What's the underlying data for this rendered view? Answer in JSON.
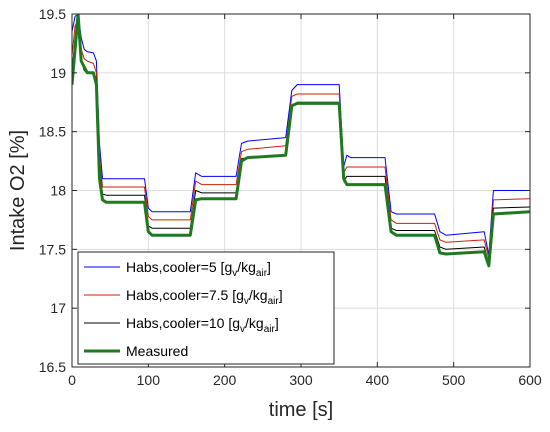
{
  "chart_data": {
    "type": "line",
    "xlabel": "time [s]",
    "ylabel": "Intake O2 [%]",
    "xlim": [
      0,
      600
    ],
    "ylim": [
      16.5,
      19.5
    ],
    "xticks": [
      0,
      100,
      200,
      300,
      400,
      500,
      600
    ],
    "yticks": [
      16.5,
      17,
      17.5,
      18,
      18.5,
      19,
      19.5
    ],
    "xtick_labels": [
      "0",
      "100",
      "200",
      "300",
      "400",
      "500",
      "600"
    ],
    "ytick_labels": [
      "16.5",
      "17",
      "17.5",
      "18",
      "18.5",
      "19",
      "19.5"
    ],
    "grid": true,
    "legend_position": "lower-left",
    "series": [
      {
        "name": "Habs,cooler=5 [gv/kgair]",
        "legend": {
          "base": "Habs,cooler=5 [g",
          "sub1": "v",
          "mid": "/kg",
          "sub2": "air",
          "end": "]"
        },
        "color": "#0000ff",
        "width": 1,
        "x": [
          0,
          4,
          8,
          12,
          16,
          20,
          28,
          32,
          36,
          40,
          45,
          95,
          100,
          105,
          155,
          162,
          170,
          215,
          222,
          230,
          280,
          288,
          295,
          350,
          356,
          360,
          365,
          410,
          418,
          425,
          475,
          482,
          490,
          540,
          546,
          552,
          600
        ],
        "y": [
          19.35,
          19.48,
          19.5,
          19.3,
          19.2,
          19.18,
          19.17,
          19.1,
          18.4,
          18.1,
          18.1,
          18.1,
          17.85,
          17.82,
          17.82,
          18.15,
          18.12,
          18.12,
          18.4,
          18.42,
          18.45,
          18.85,
          18.9,
          18.9,
          18.2,
          18.3,
          18.28,
          18.28,
          17.82,
          17.8,
          17.8,
          17.65,
          17.62,
          17.65,
          17.45,
          18.0,
          18.0
        ]
      },
      {
        "name": "Habs,cooler=7.5 [gv/kgair]",
        "legend": {
          "base": "Habs,cooler=7.5 [g",
          "sub1": "v",
          "mid": "/kg",
          "sub2": "air",
          "end": "]"
        },
        "color": "#cc2200",
        "width": 1,
        "x": [
          0,
          4,
          8,
          12,
          16,
          20,
          28,
          32,
          36,
          40,
          45,
          95,
          100,
          105,
          155,
          162,
          170,
          215,
          222,
          230,
          280,
          288,
          295,
          350,
          356,
          360,
          365,
          410,
          418,
          425,
          475,
          482,
          490,
          540,
          546,
          552,
          600
        ],
        "y": [
          19.15,
          19.4,
          19.45,
          19.2,
          19.12,
          19.1,
          19.08,
          19.0,
          18.3,
          18.03,
          18.03,
          18.03,
          17.78,
          17.75,
          17.75,
          18.08,
          18.05,
          18.05,
          18.33,
          18.35,
          18.38,
          18.8,
          18.82,
          18.82,
          18.15,
          18.2,
          18.2,
          18.2,
          17.75,
          17.72,
          17.72,
          17.58,
          17.56,
          17.58,
          17.42,
          17.92,
          17.93
        ]
      },
      {
        "name": "Habs,cooler=10 [gv/kgair]",
        "legend": {
          "base": "Habs,cooler=10 [g",
          "sub1": "v",
          "mid": "/kg",
          "sub2": "air",
          "end": "]"
        },
        "color": "#000000",
        "width": 1,
        "x": [
          0,
          4,
          8,
          12,
          16,
          20,
          28,
          32,
          36,
          40,
          45,
          95,
          100,
          105,
          155,
          162,
          170,
          215,
          222,
          230,
          280,
          288,
          295,
          350,
          356,
          360,
          365,
          410,
          418,
          425,
          475,
          482,
          490,
          540,
          546,
          552,
          600
        ],
        "y": [
          19.0,
          19.3,
          19.35,
          19.1,
          19.02,
          19.0,
          19.0,
          18.95,
          18.2,
          17.97,
          17.96,
          17.96,
          17.7,
          17.68,
          17.68,
          18.0,
          17.98,
          17.98,
          18.27,
          18.28,
          18.3,
          18.72,
          18.75,
          18.75,
          18.08,
          18.12,
          18.12,
          18.12,
          17.68,
          17.66,
          17.66,
          17.52,
          17.5,
          17.52,
          17.38,
          17.85,
          17.86
        ]
      },
      {
        "name": "Measured",
        "legend": {
          "base": "Measured",
          "sub1": "",
          "mid": "",
          "sub2": "",
          "end": ""
        },
        "color": "#1f7a1f",
        "width": 3,
        "x": [
          0,
          4,
          8,
          12,
          16,
          20,
          28,
          32,
          36,
          40,
          45,
          95,
          100,
          105,
          155,
          162,
          170,
          215,
          222,
          230,
          280,
          288,
          295,
          350,
          356,
          360,
          365,
          410,
          418,
          425,
          475,
          482,
          490,
          540,
          546,
          552,
          600
        ],
        "y": [
          18.9,
          19.2,
          19.5,
          19.1,
          19.05,
          19.0,
          19.0,
          18.9,
          18.1,
          17.92,
          17.9,
          17.9,
          17.65,
          17.62,
          17.62,
          17.92,
          17.93,
          17.93,
          18.25,
          18.28,
          18.3,
          18.72,
          18.74,
          18.74,
          18.1,
          18.05,
          18.05,
          18.05,
          17.65,
          17.62,
          17.62,
          17.47,
          17.46,
          17.48,
          17.36,
          17.8,
          17.82
        ]
      }
    ]
  }
}
